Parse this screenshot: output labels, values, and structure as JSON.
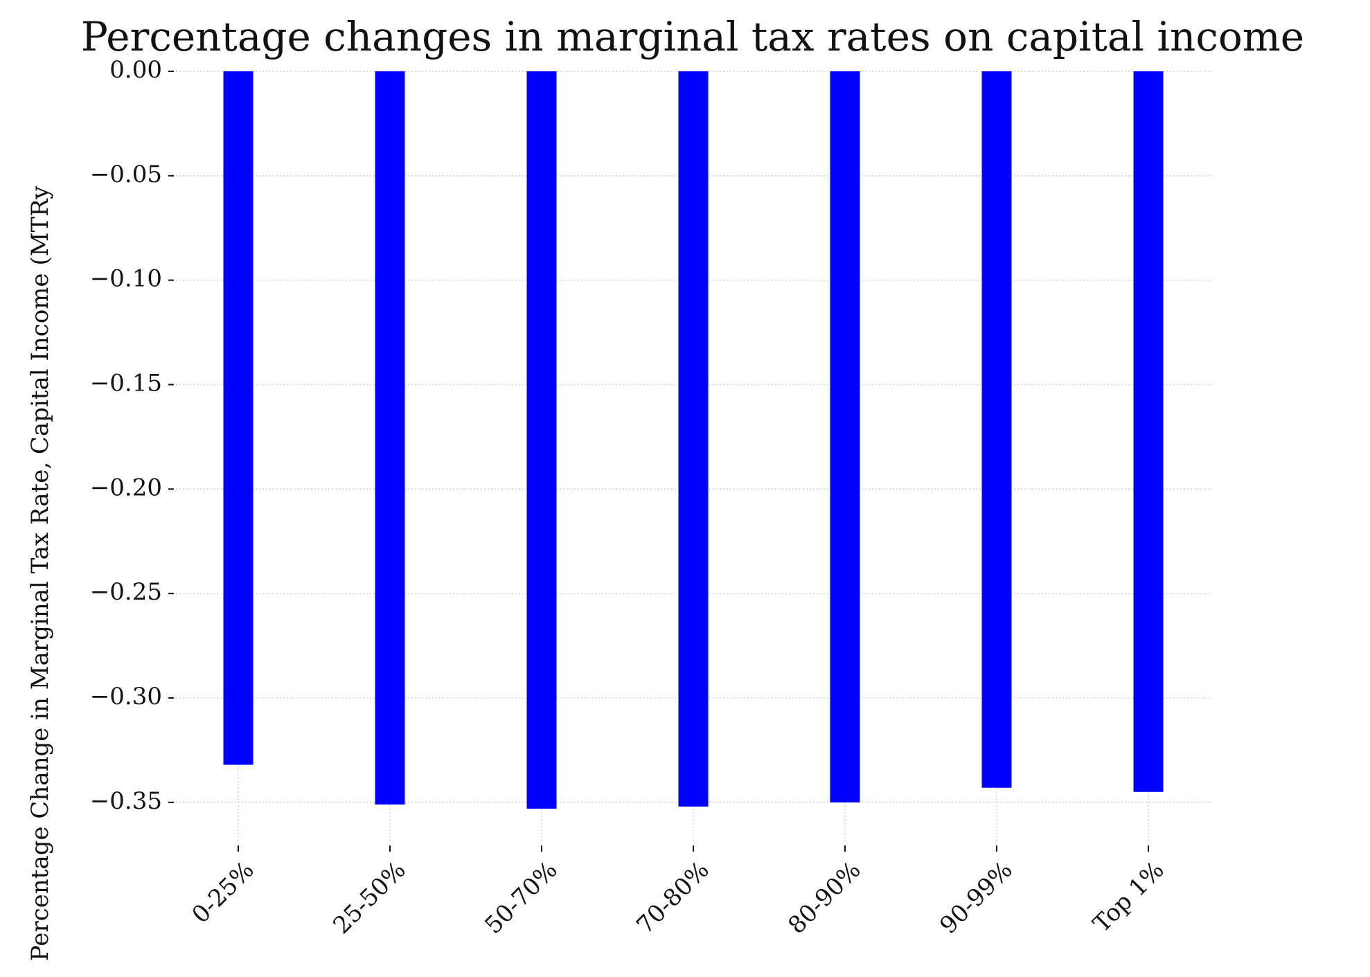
{
  "chart_data": {
    "type": "bar",
    "title": "Percentage changes in marginal tax rates on capital income",
    "y_label": "Percentage Change in Marginal Tax Rate, Capital Income (MTRy",
    "categories": [
      "0-25%",
      "25-50%",
      "50-70%",
      "70-80%",
      "80-90%",
      "90-99%",
      "Top 1%"
    ],
    "values": [
      -0.332,
      -0.351,
      -0.353,
      -0.352,
      -0.35,
      -0.343,
      -0.345
    ],
    "color": "#0000ff",
    "ylim": [
      -0.361,
      0
    ],
    "yticks": [
      {
        "value": 0,
        "label": "0.00"
      },
      {
        "value": -0.05,
        "label": "−0.05"
      },
      {
        "value": -0.1,
        "label": "−0.10"
      },
      {
        "value": -0.15,
        "label": "−0.15"
      },
      {
        "value": -0.2,
        "label": "−0.20"
      },
      {
        "value": -0.25,
        "label": "−0.25"
      },
      {
        "value": -0.3,
        "label": "−0.30"
      },
      {
        "value": -0.35,
        "label": "−0.35"
      }
    ],
    "grid": true
  }
}
